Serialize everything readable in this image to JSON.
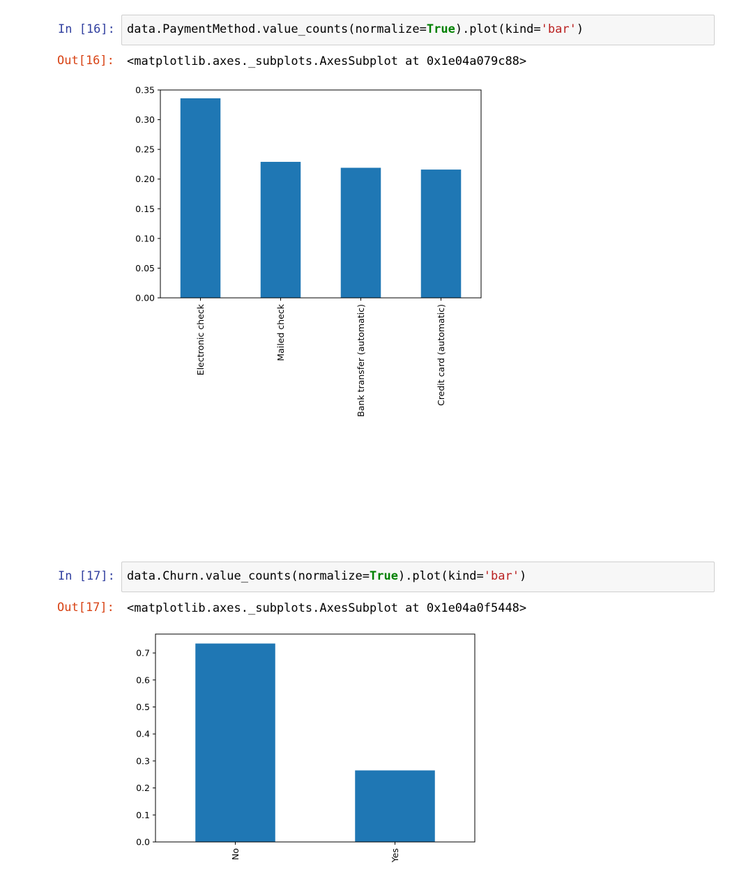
{
  "cells": [
    {
      "in_prompt": "In [16]:",
      "code": {
        "pre": "data.PaymentMethod.value_counts(normalize=",
        "kw": "True",
        "mid": ").plot(kind=",
        "str": "'bar'",
        "post": ")"
      },
      "out_prompt": "Out[16]:",
      "out_text": "<matplotlib.axes._subplots.AxesSubplot at 0x1e04a079c88>"
    },
    {
      "in_prompt": "In [17]:",
      "code": {
        "pre": "data.Churn.value_counts(normalize=",
        "kw": "True",
        "mid": ").plot(kind=",
        "str": "'bar'",
        "post": ")"
      },
      "out_prompt": "Out[17]:",
      "out_text": "<matplotlib.axes._subplots.AxesSubplot at 0x1e04a0f5448>"
    }
  ],
  "chart_data": [
    {
      "type": "bar",
      "categories": [
        "Electronic check",
        "Mailed check",
        "Bank transfer (automatic)",
        "Credit card (automatic)"
      ],
      "values": [
        0.336,
        0.229,
        0.219,
        0.216
      ],
      "yticks": [
        "0.00",
        "0.05",
        "0.10",
        "0.15",
        "0.20",
        "0.25",
        "0.30",
        "0.35"
      ],
      "ylim": [
        0,
        0.35
      ],
      "bar_color": "#1f77b4",
      "grid": false,
      "legend": false
    },
    {
      "type": "bar",
      "categories": [
        "No",
        "Yes"
      ],
      "values": [
        0.735,
        0.265
      ],
      "yticks": [
        "0.0",
        "0.1",
        "0.2",
        "0.3",
        "0.4",
        "0.5",
        "0.6",
        "0.7"
      ],
      "ylim": [
        0,
        0.77
      ],
      "bar_color": "#1f77b4",
      "grid": false,
      "legend": false
    }
  ]
}
